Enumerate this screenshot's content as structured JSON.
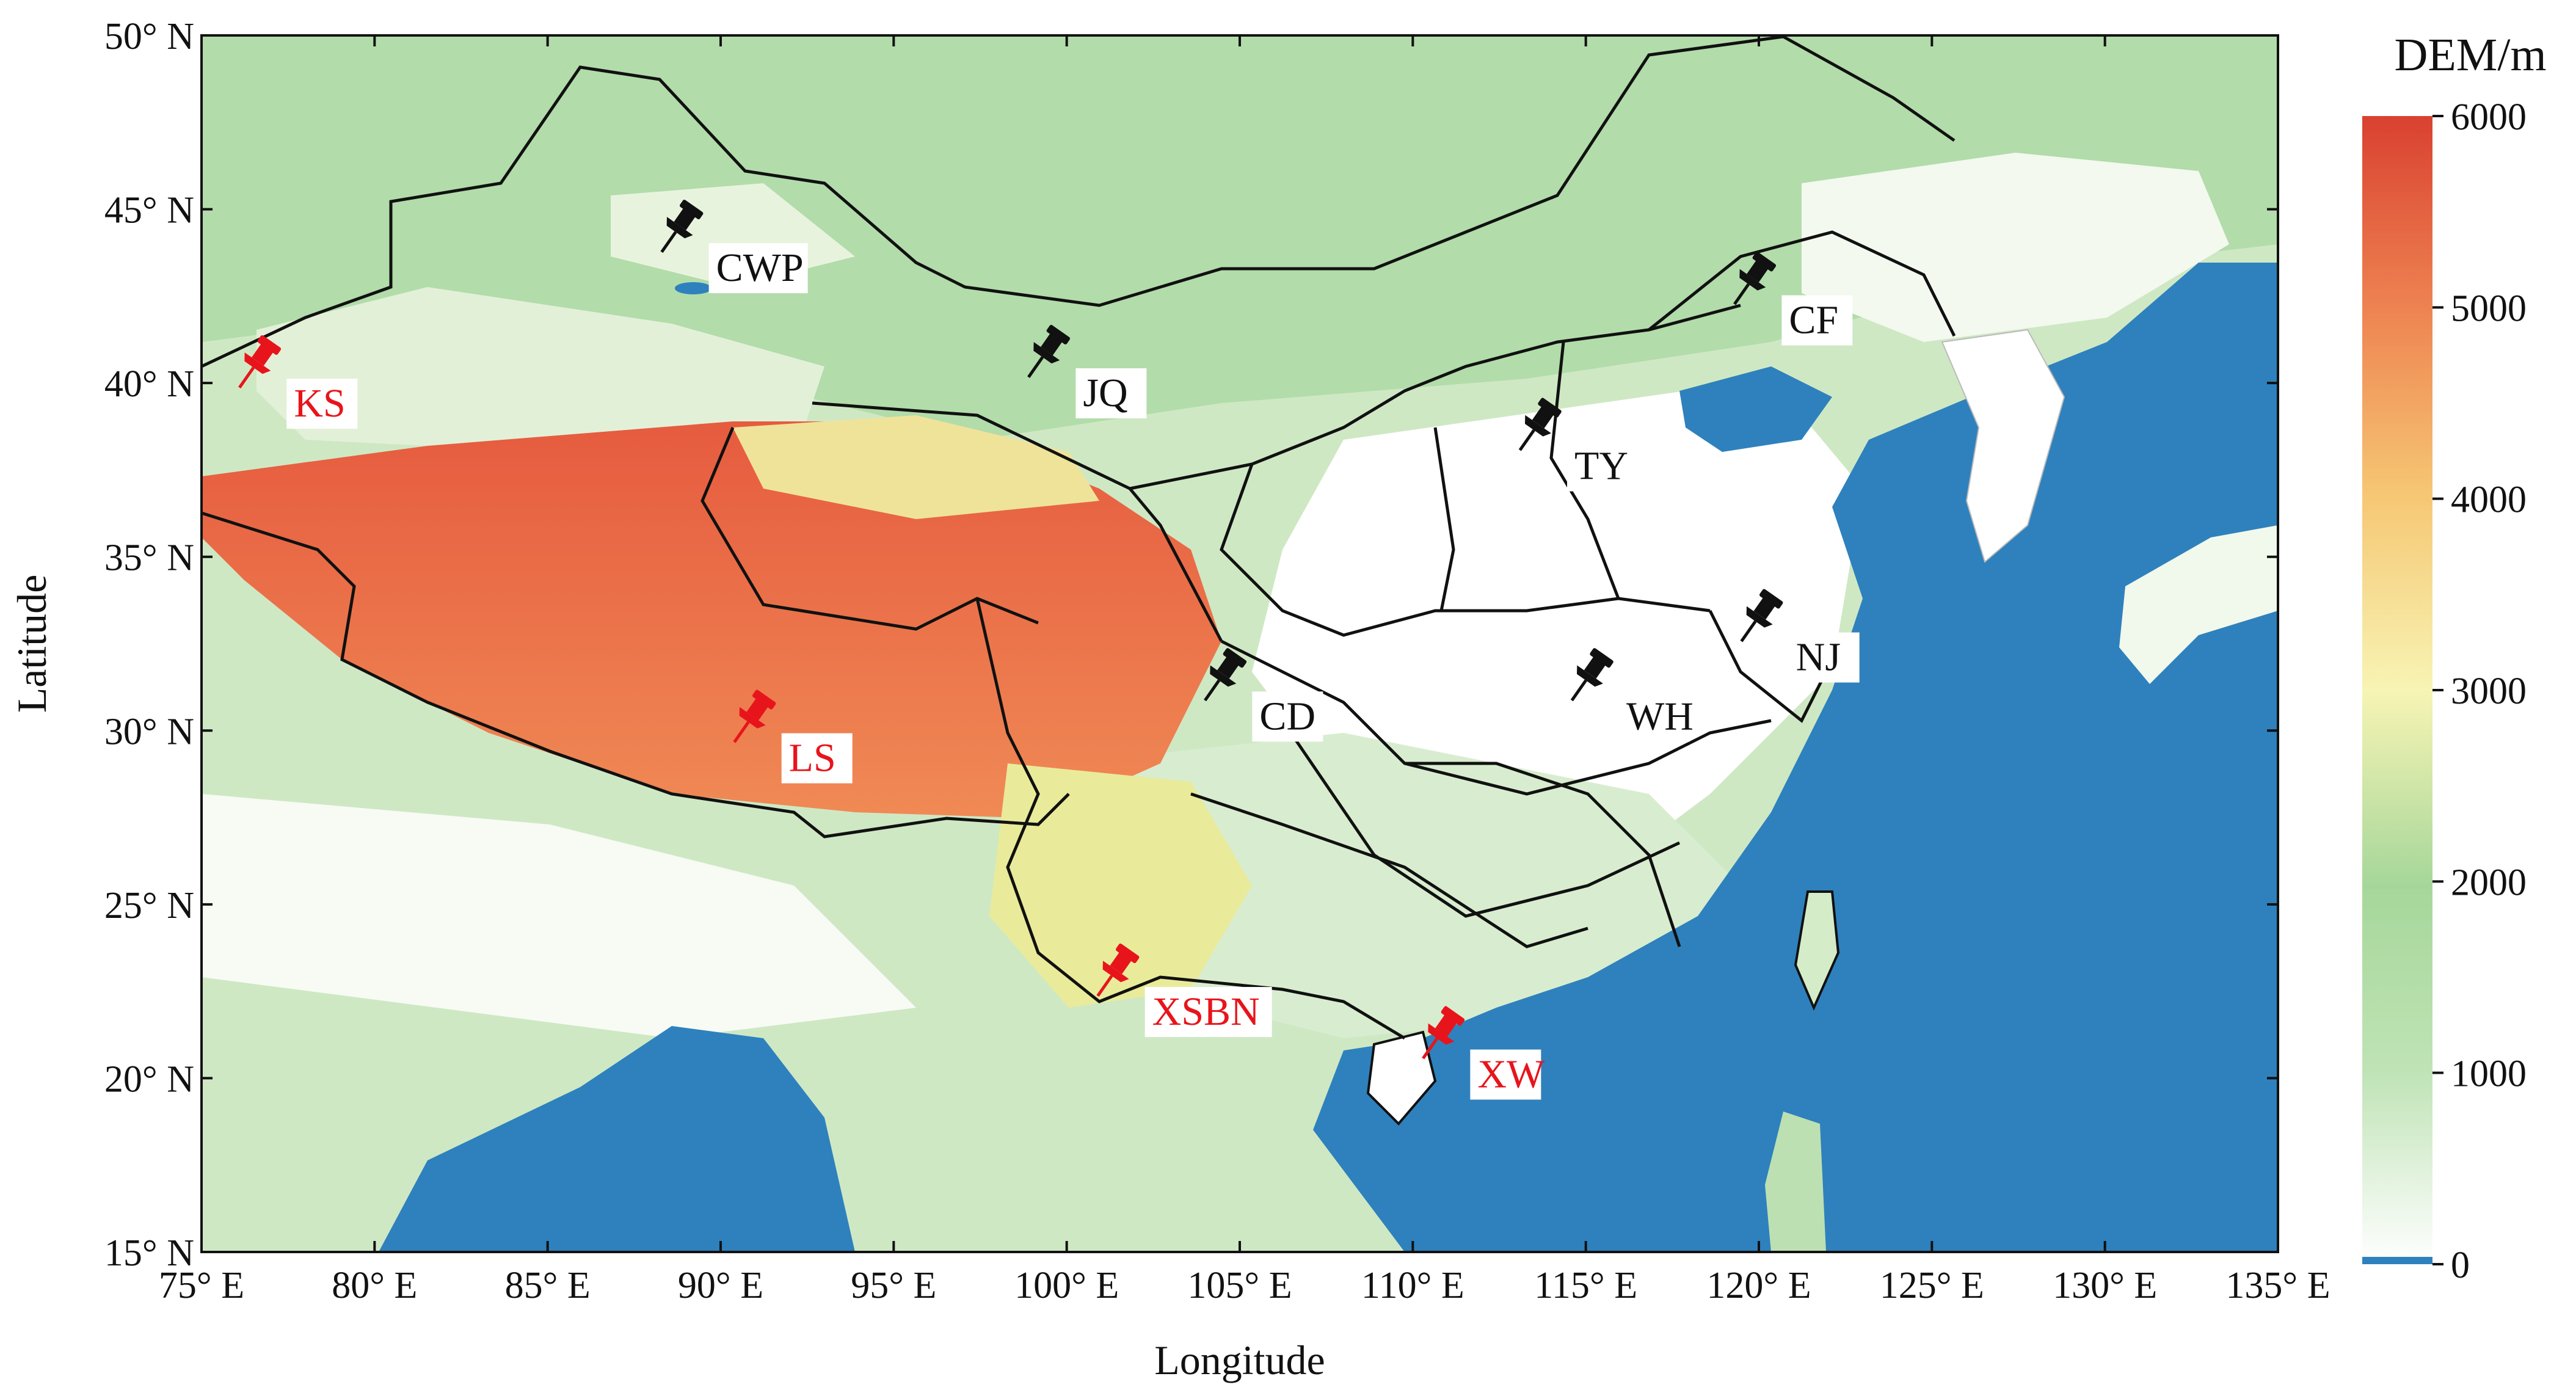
{
  "map": {
    "x_axis_title": "Longitude",
    "y_axis_title": "Latitude",
    "lon_ticks": [
      "75° E",
      "80° E",
      "85° E",
      "90° E",
      "95° E",
      "100° E",
      "105° E",
      "110° E",
      "115° E",
      "120° E",
      "125° E",
      "130° E",
      "135° E"
    ],
    "lat_ticks": [
      "50° N",
      "45° N",
      "40° N",
      "35° N",
      "30° N",
      "25° N",
      "20° N",
      "15° N"
    ],
    "lon_range": [
      75,
      135
    ],
    "lat_range": [
      15,
      50
    ],
    "colors": {
      "ocean": "#2e81bd",
      "land_low": "#ffffff",
      "land_mid": "#a9d9a0",
      "land_high": "#f8f3b0",
      "mountain": "#e0503a",
      "boundary": "#111111",
      "highlight_site": "#e8141b",
      "regular_site": "#111111"
    }
  },
  "colorbar": {
    "title": "DEM/m",
    "ticks": [
      "6000",
      "5000",
      "4000",
      "3000",
      "2000",
      "1000",
      "0"
    ],
    "range": [
      0,
      6000
    ]
  },
  "sites": [
    {
      "label": "KS",
      "lon": 76.4,
      "lat": 40.3,
      "highlighted": true
    },
    {
      "label": "CWP",
      "lon": 88.6,
      "lat": 44.2,
      "highlighted": false
    },
    {
      "label": "JQ",
      "lon": 99.2,
      "lat": 40.6,
      "highlighted": false
    },
    {
      "label": "CF",
      "lon": 119.6,
      "lat": 42.7,
      "highlighted": false
    },
    {
      "label": "TY",
      "lon": 113.4,
      "lat": 38.5,
      "highlighted": false
    },
    {
      "label": "NJ",
      "lon": 119.8,
      "lat": 33.0,
      "highlighted": false
    },
    {
      "label": "WH",
      "lon": 114.9,
      "lat": 31.3,
      "highlighted": false
    },
    {
      "label": "CD",
      "lon": 104.3,
      "lat": 31.3,
      "highlighted": false
    },
    {
      "label": "LS",
      "lon": 90.7,
      "lat": 30.1,
      "highlighted": true
    },
    {
      "label": "XSBN",
      "lon": 101.2,
      "lat": 22.8,
      "highlighted": true
    },
    {
      "label": "XW",
      "lon": 110.6,
      "lat": 21.0,
      "highlighted": true
    }
  ]
}
